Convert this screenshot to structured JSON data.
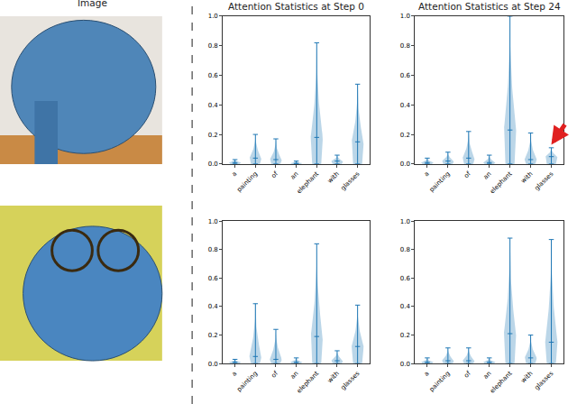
{
  "images": {
    "title": "Image"
  },
  "chart_data": [
    {
      "type": "violin",
      "title": "Attention Statistics at Step 0",
      "color": "#1f77b4",
      "categories": [
        "a",
        "painting",
        "of",
        "an",
        "elephant",
        "with",
        "glasses"
      ],
      "min": [
        0,
        0,
        0,
        0,
        0,
        0,
        0
      ],
      "median": [
        0.01,
        0.04,
        0.03,
        0.005,
        0.18,
        0.02,
        0.15
      ],
      "max": [
        0.03,
        0.2,
        0.17,
        0.02,
        0.82,
        0.06,
        0.54
      ],
      "ylim": [
        0,
        1
      ],
      "yticks": [
        {
          "value": 0,
          "label": "0.0"
        },
        {
          "value": 0.2,
          "label": "0.2"
        },
        {
          "value": 0.4,
          "label": "0.4"
        },
        {
          "value": 0.6,
          "label": "0.6"
        },
        {
          "value": 0.8,
          "label": "0.8"
        },
        {
          "value": 1,
          "label": "1.0"
        }
      ]
    },
    {
      "type": "violin",
      "title": "Attention Statistics at Step 24",
      "color": "#1f77b4",
      "categories": [
        "a",
        "painting",
        "of",
        "an",
        "elephant",
        "with",
        "glasses"
      ],
      "min": [
        0,
        0,
        0,
        0,
        0,
        0,
        0
      ],
      "median": [
        0.01,
        0.02,
        0.04,
        0.01,
        0.23,
        0.03,
        0.05
      ],
      "max": [
        0.04,
        0.08,
        0.22,
        0.06,
        1.0,
        0.21,
        0.11
      ],
      "ylim": [
        0,
        1
      ],
      "yticks": [
        {
          "value": 0,
          "label": "0.0"
        },
        {
          "value": 0.2,
          "label": "0.2"
        },
        {
          "value": 0.4,
          "label": "0.4"
        },
        {
          "value": 0.6,
          "label": "0.6"
        },
        {
          "value": 0.8,
          "label": "0.8"
        },
        {
          "value": 1,
          "label": "1.0"
        }
      ]
    },
    {
      "type": "violin",
      "color": "#1f77b4",
      "categories": [
        "a",
        "painting",
        "of",
        "an",
        "elephant",
        "with",
        "glasses"
      ],
      "min": [
        0,
        0,
        0,
        0,
        0,
        0,
        0
      ],
      "median": [
        0.01,
        0.05,
        0.03,
        0.01,
        0.19,
        0.02,
        0.12
      ],
      "max": [
        0.03,
        0.42,
        0.24,
        0.04,
        0.84,
        0.09,
        0.41
      ],
      "ylim": [
        0,
        1
      ],
      "yticks": [
        {
          "value": 0,
          "label": "0.0"
        },
        {
          "value": 0.2,
          "label": "0.2"
        },
        {
          "value": 0.4,
          "label": "0.4"
        },
        {
          "value": 0.6,
          "label": "0.6"
        },
        {
          "value": 0.8,
          "label": "0.8"
        },
        {
          "value": 1,
          "label": "1.0"
        }
      ]
    },
    {
      "type": "violin",
      "color": "#1f77b4",
      "categories": [
        "a",
        "painting",
        "of",
        "an",
        "elephant",
        "with",
        "glasses"
      ],
      "min": [
        0,
        0,
        0,
        0,
        0,
        0,
        0
      ],
      "median": [
        0.01,
        0.02,
        0.02,
        0.01,
        0.21,
        0.04,
        0.15
      ],
      "max": [
        0.04,
        0.11,
        0.11,
        0.04,
        0.88,
        0.2,
        0.87
      ],
      "ylim": [
        0,
        1
      ],
      "yticks": [
        {
          "value": 0,
          "label": "0.0"
        },
        {
          "value": 0.2,
          "label": "0.2"
        },
        {
          "value": 0.4,
          "label": "0.4"
        },
        {
          "value": 0.6,
          "label": "0.6"
        },
        {
          "value": 0.8,
          "label": "0.8"
        },
        {
          "value": 1,
          "label": "1.0"
        }
      ]
    }
  ]
}
